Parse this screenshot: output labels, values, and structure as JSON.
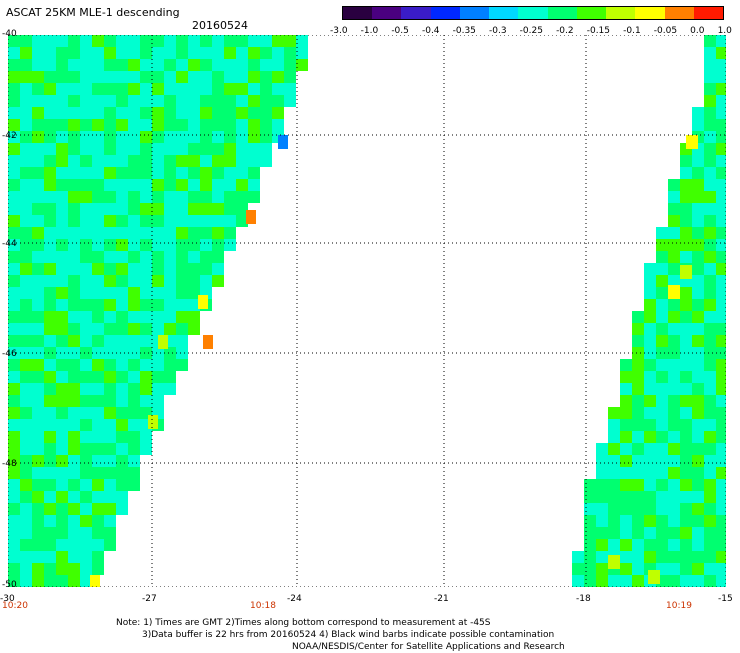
{
  "header": {
    "title": "ASCAT 25KM MLE-1 descending",
    "date": "20160524"
  },
  "colorbar": {
    "labels": [
      "-3.0",
      "-1.0",
      "-0.5",
      "-0.4",
      "-0.35",
      "-0.3",
      "-0.25",
      "-0.2",
      "-0.15",
      "-0.1",
      "-0.05",
      "0.0",
      "1.0"
    ],
    "colors": [
      "#2a0040",
      "#4a0080",
      "#3a1cc8",
      "#0028ff",
      "#0080ff",
      "#00d8ff",
      "#00ffd0",
      "#00ff70",
      "#40ff00",
      "#c0ff00",
      "#ffff00",
      "#ff8000",
      "#ff1a00"
    ]
  },
  "axes": {
    "lat_labels": [
      "-40",
      "-42",
      "-44",
      "-46",
      "-48",
      "-50"
    ],
    "lon_labels": [
      "-30",
      "-27",
      "-24",
      "-21",
      "-18",
      "-15"
    ],
    "lat_range": [
      -50,
      -40
    ],
    "lon_range": [
      -30,
      -15
    ]
  },
  "times": [
    "10:20",
    "10:18",
    "10:19"
  ],
  "note": {
    "line1": "Note: 1) Times are GMT 2)Times along bottom correspond to measurement at -45S",
    "line2": "3)Data buffer is 22 hrs from 20160524 4) Black wind barbs indicate possible contamination",
    "line3": "NOAA/NESDIS/Center for Satellite Applications and Research"
  },
  "map": {
    "swaths": [
      {
        "name": "west-swath",
        "colors": [
          "#00ffd0",
          "#00ff70",
          "#40ff00"
        ]
      },
      {
        "name": "east-swath",
        "colors": [
          "#00ffd0",
          "#00ff70",
          "#40ff00"
        ]
      }
    ]
  }
}
